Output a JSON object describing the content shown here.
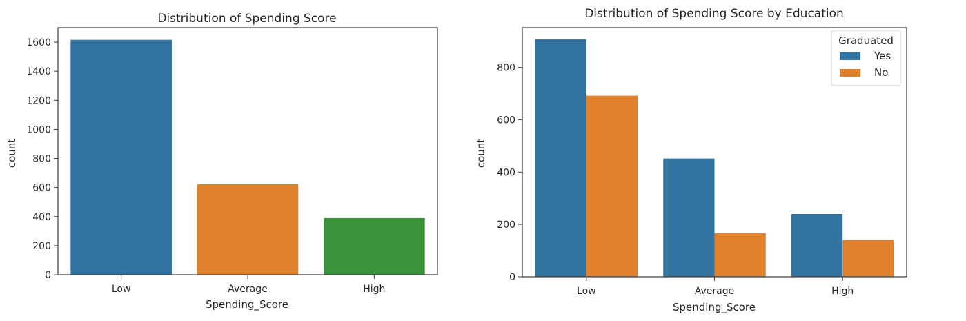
{
  "chart_data": [
    {
      "type": "bar",
      "title": "Distribution of Spending Score",
      "xlabel": "Spending_Score",
      "ylabel": "count",
      "categories": [
        "Low",
        "Average",
        "High"
      ],
      "values": [
        1616,
        622,
        390
      ],
      "colors": [
        "#3274a1",
        "#e1812c",
        "#3a923a"
      ],
      "ylim": [
        0,
        1700
      ],
      "yticks": [
        0,
        200,
        400,
        600,
        800,
        1000,
        1200,
        1400,
        1600
      ]
    },
    {
      "type": "bar",
      "title": "Distribution of Spending Score by Education",
      "xlabel": "Spending_Score",
      "ylabel": "count",
      "categories": [
        "Low",
        "Average",
        "High"
      ],
      "series": [
        {
          "name": "Yes",
          "values": [
            907,
            452,
            240
          ],
          "color": "#3274a1"
        },
        {
          "name": "No",
          "values": [
            692,
            166,
            140
          ],
          "color": "#e1812c"
        }
      ],
      "legend": {
        "title": "Graduated",
        "position": "top-right"
      },
      "ylim": [
        0,
        952
      ],
      "yticks": [
        0,
        200,
        400,
        600,
        800
      ]
    }
  ]
}
